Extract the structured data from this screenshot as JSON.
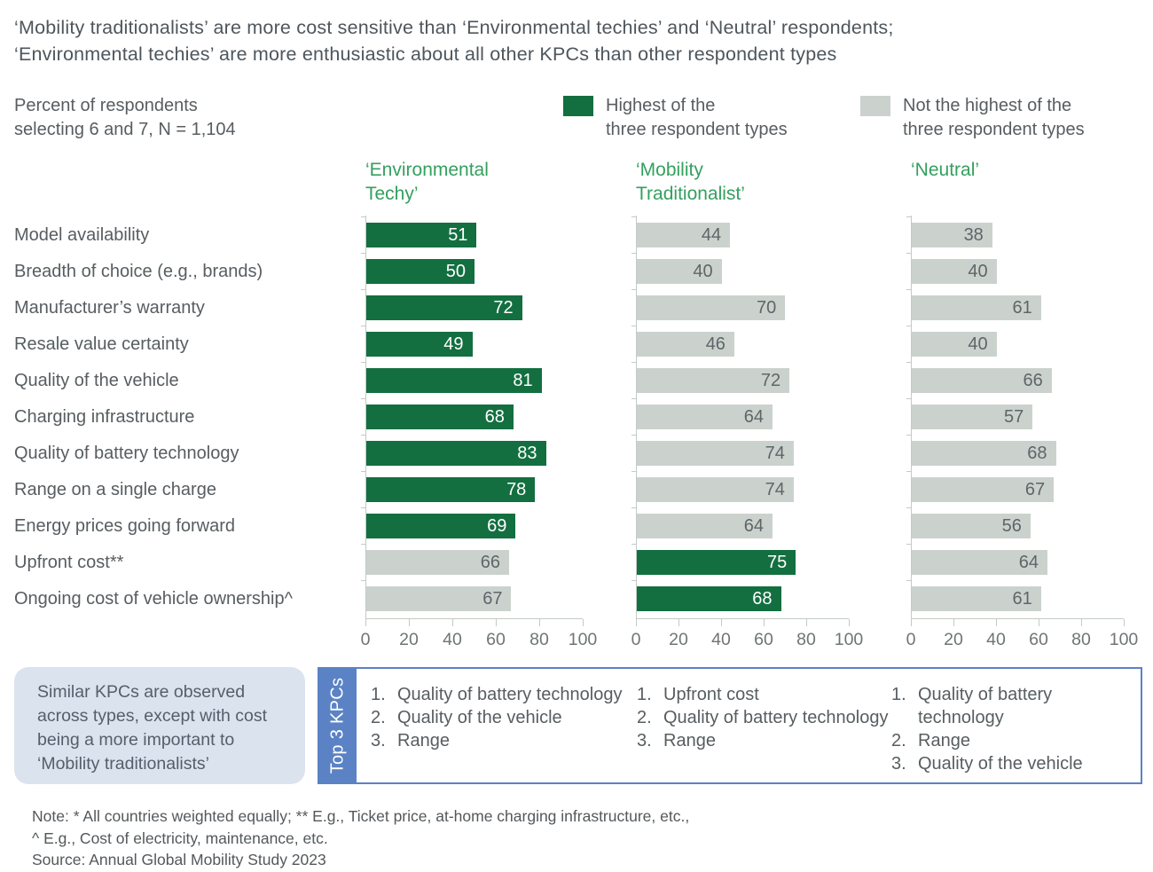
{
  "title": {
    "line1": "‘Mobility traditionalists’ are more cost sensitive than ‘Environmental techies’ and ‘Neutral’ respondents;",
    "line2": "‘Environmental techies’ are more enthusiastic about all other KPCs than other respondent types"
  },
  "legend": {
    "axis_note": "Percent of respondents\nselecting 6 and 7, N = 1,104",
    "highest_label": "Highest of the\nthree respondent types",
    "not_highest_label": "Not the highest of the\nthree respondent types"
  },
  "colors": {
    "highest": "#136f40",
    "not_highest": "#cbd2ce",
    "header_green": "#34a05e",
    "accent_blue": "#5b82c4",
    "callout_bg": "#dbe3ee"
  },
  "chart_data": {
    "type": "bar",
    "orientation": "horizontal",
    "title": "Percent of respondents selecting 6 and 7, N = 1,104",
    "xlim": [
      0,
      100
    ],
    "x_ticks": [
      0,
      20,
      40,
      60,
      80,
      100
    ],
    "grid": false,
    "legend_position": "top",
    "categories": [
      "Model availability",
      "Breadth of choice (e.g., brands)",
      "Manufacturer’s warranty",
      "Resale value certainty",
      "Quality of the vehicle",
      "Charging infrastructure",
      "Quality of battery technology",
      "Range on a single charge",
      "Energy prices going forward",
      "Upfront cost**",
      "Ongoing cost of vehicle ownership^"
    ],
    "series": [
      {
        "name": "‘Environmental Techy’",
        "values": [
          51,
          50,
          72,
          49,
          81,
          68,
          83,
          78,
          69,
          66,
          67
        ],
        "highest": [
          true,
          true,
          true,
          true,
          true,
          true,
          true,
          true,
          true,
          false,
          false
        ]
      },
      {
        "name": "‘Mobility Traditionalist’",
        "values": [
          44,
          40,
          70,
          46,
          72,
          64,
          74,
          74,
          64,
          75,
          68
        ],
        "highest": [
          false,
          false,
          false,
          false,
          false,
          false,
          false,
          false,
          false,
          true,
          true
        ]
      },
      {
        "name": "‘Neutral’",
        "values": [
          38,
          40,
          61,
          40,
          66,
          57,
          68,
          67,
          56,
          64,
          61
        ],
        "highest": [
          false,
          false,
          false,
          false,
          false,
          false,
          false,
          false,
          false,
          false,
          false
        ]
      }
    ]
  },
  "callout": {
    "text": "Similar KPCs are observed across types, except with cost being a more important to ‘Mobility traditionalists’"
  },
  "top3": {
    "label": "Top 3 KPCs",
    "lists": [
      [
        "Quality of battery technology",
        "Quality of the vehicle",
        "Range"
      ],
      [
        "Upfront cost",
        "Quality of battery technology",
        "Range"
      ],
      [
        "Quality of battery technology",
        "Range",
        "Quality of the vehicle"
      ]
    ]
  },
  "notes": {
    "line1": "Note: * All countries weighted equally; ** E.g., Ticket price, at-home charging infrastructure, etc.,",
    "line2": "^ E.g., Cost of electricity, maintenance, etc.",
    "line3": "Source: Annual Global Mobility Study 2023"
  }
}
